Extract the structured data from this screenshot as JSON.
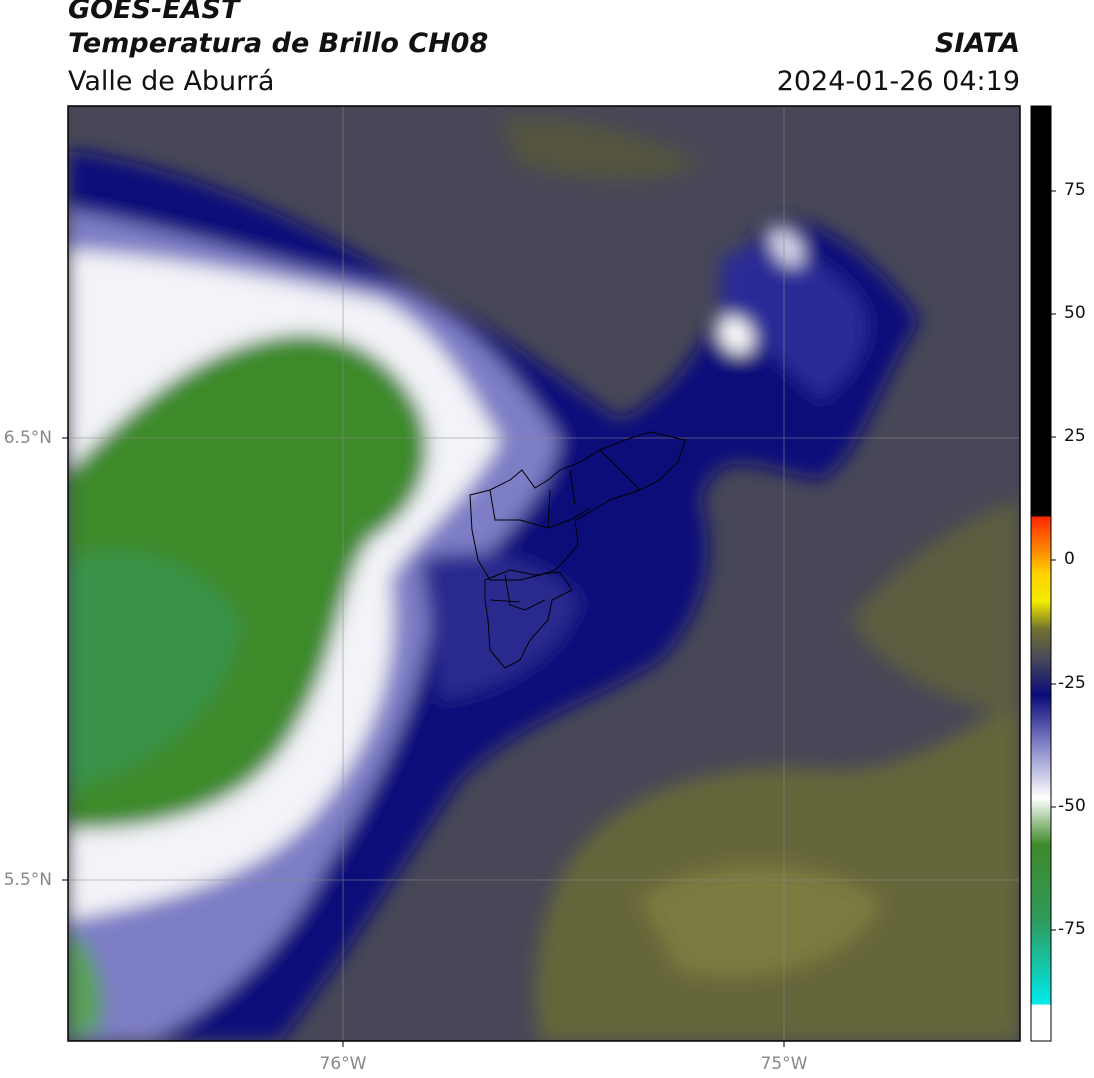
{
  "header": {
    "satellite": "GOES-EAST",
    "product": "Temperatura de Brillo CH08",
    "region": "Valle de Aburrá",
    "organization": "SIATA",
    "timestamp": "2024-01-26 04:19"
  },
  "map": {
    "lat_labels": [
      "6.5°N",
      "5.5°N"
    ],
    "lon_labels": [
      "76°W",
      "75°W"
    ]
  },
  "colorbar": {
    "ticks": [
      "75",
      "50",
      "25",
      "0",
      "-25",
      "-50",
      "-75"
    ],
    "colors": {
      "black": "#000000",
      "red": "#ff2a00",
      "orange": "#ff8c00",
      "yellow": "#ffee00",
      "olive": "#6b6b2e",
      "gray": "#4a4a58",
      "navy": "#0a0a7a",
      "lavender": "#9a9ad6",
      "white": "#ffffff",
      "green": "#3f8a2a",
      "teal": "#2ab59a",
      "cyan": "#00eaea"
    }
  }
}
